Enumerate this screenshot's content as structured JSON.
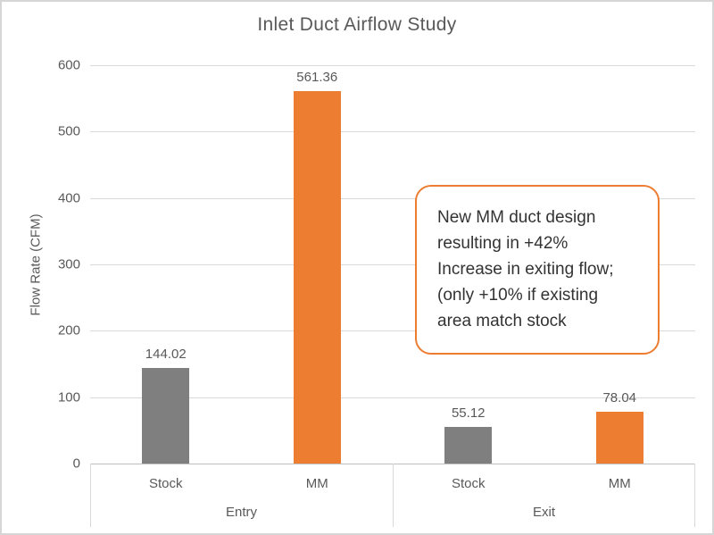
{
  "chart_data": {
    "type": "bar",
    "title": "Inlet Duct Airflow Study",
    "xlabel": "",
    "ylabel": "Flow Rate (CFM)",
    "ylim": [
      0,
      600
    ],
    "yticks": [
      0,
      100,
      200,
      300,
      400,
      500,
      600
    ],
    "grid": true,
    "legend": "none",
    "group_labels": [
      "Entry",
      "Exit"
    ],
    "categories": [
      "Entry Stock",
      "Entry MM",
      "Exit Stock",
      "Exit MM"
    ],
    "sub_labels": [
      "Stock",
      "MM",
      "Stock",
      "MM"
    ],
    "values": [
      144.02,
      561.36,
      55.12,
      78.04
    ],
    "data_labels": [
      "144.02",
      "561.36",
      "55.12",
      "78.04"
    ],
    "bar_colors": [
      "#7f7f7f",
      "#ed7d31",
      "#7f7f7f",
      "#ed7d31"
    ]
  },
  "annotation": {
    "lines": [
      "New MM duct design",
      "resulting in +42%",
      "Increase in exiting flow;",
      "(only +10% if existing",
      "area match stock"
    ],
    "border_color": "#ed7d31"
  },
  "colors": {
    "accent_orange": "#ed7d31",
    "bar_gray": "#7f7f7f",
    "gridline": "#d9d9d9",
    "axis_line": "#bfbfbf",
    "text_gray": "#595959",
    "frame_border": "#d6d6d6"
  }
}
